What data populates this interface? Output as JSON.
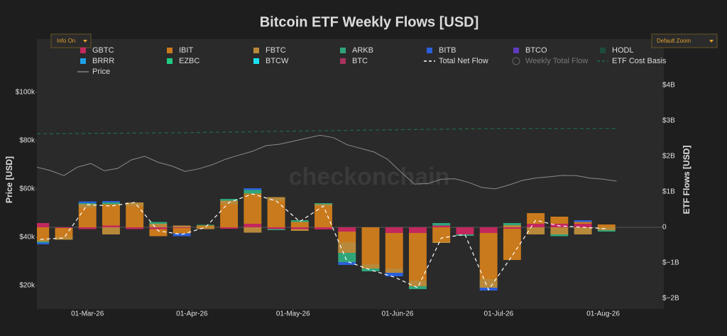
{
  "buttons": {
    "info": "Info On",
    "zoom": "Default Zoom"
  },
  "chart_data": {
    "type": "bar",
    "stacked": true,
    "title": "Bitcoin ETF Weekly Flows [USD]",
    "ylabel": "Price [USD]",
    "y2label": "ETF Flows [USD]",
    "watermark": "checkonchain",
    "x": [
      "2026-02-15",
      "2026-02-22",
      "2026-03-01",
      "2026-03-08",
      "2026-03-15",
      "2026-03-22",
      "2026-03-29",
      "2026-04-05",
      "2026-04-12",
      "2026-04-19",
      "2026-04-26",
      "2026-05-03",
      "2026-05-10",
      "2026-05-17",
      "2026-05-24",
      "2026-05-31",
      "2026-06-07",
      "2026-06-14",
      "2026-06-21",
      "2026-06-28",
      "2026-07-05",
      "2026-07-12",
      "2026-07-19",
      "2026-07-26",
      "2026-08-02"
    ],
    "xlim": [
      "2026-02-14",
      "2026-08-19"
    ],
    "xticks": [
      {
        "value": "2026-03-01",
        "label": "01-Mar-26"
      },
      {
        "value": "2026-04-01",
        "label": "01-Apr-26"
      },
      {
        "value": "2026-05-01",
        "label": "01-May-26"
      },
      {
        "value": "2026-06-01",
        "label": "01-Jun-26"
      },
      {
        "value": "2026-07-01",
        "label": "01-Jul-26"
      },
      {
        "value": "2026-08-01",
        "label": "01-Aug-26"
      }
    ],
    "ylim": [
      10300,
      122000
    ],
    "yticks": [
      {
        "value": 20000,
        "label": "$20k"
      },
      {
        "value": 40000,
        "label": "$40k"
      },
      {
        "value": 60000,
        "label": "$60k"
      },
      {
        "value": 80000,
        "label": "$80k"
      },
      {
        "value": 100000,
        "label": "$100k"
      }
    ],
    "y2lim": [
      -2300000000.0,
      5300000000.0
    ],
    "y2ticks": [
      {
        "value": -2000000000.0,
        "label": "$−2B"
      },
      {
        "value": -1000000000.0,
        "label": "$−1B"
      },
      0,
      {
        "value": 1000000000.0,
        "label": "$1B"
      },
      {
        "value": 2000000000.0,
        "label": "$2B"
      },
      {
        "value": 3000000000.0,
        "label": "$3B"
      },
      {
        "value": 4000000000.0,
        "label": "$4B"
      }
    ],
    "series": [
      {
        "name": "GBTC",
        "color": "#c2285e",
        "axis": "y2",
        "values": [
          120000000.0,
          -20000000.0,
          -50000000.0,
          50000000.0,
          -50000000.0,
          -50000000.0,
          -20000000.0,
          0,
          -40000000.0,
          100000000.0,
          -50000000.0,
          -50000000.0,
          -60000000.0,
          -120000000.0,
          0,
          -160000000.0,
          -160000000.0,
          50000000.0,
          -200000000.0,
          -160000000.0,
          -40000000.0,
          100000000.0,
          100000000.0,
          100000000.0,
          0
        ]
      },
      {
        "name": "IBIT",
        "color": "#c97a1c",
        "axis": "y2",
        "values": [
          -350000000.0,
          -250000000.0,
          550000000.0,
          600000000.0,
          600000000.0,
          -200000000.0,
          -150000000.0,
          50000000.0,
          650000000.0,
          850000000.0,
          750000000.0,
          150000000.0,
          600000000.0,
          -300000000.0,
          -1040000000.0,
          -1000000000.0,
          -1340000000.0,
          -400000000.0,
          0,
          -1300000000.0,
          -880000000.0,
          300000000.0,
          200000000.0,
          50000000.0,
          80000000.0
        ]
      },
      {
        "name": "FBTC",
        "color": "#b8893a",
        "axis": "y2",
        "values": [
          -50000000.0,
          -80000000.0,
          100000000.0,
          -200000000.0,
          100000000.0,
          100000000.0,
          50000000.0,
          -50000000.0,
          100000000.0,
          -150000000.0,
          100000000.0,
          -50000000.0,
          50000000.0,
          -300000000.0,
          -120000000.0,
          -120000000.0,
          -160000000.0,
          -40000000.0,
          0,
          -240000000.0,
          60000000.0,
          -200000000.0,
          -200000000.0,
          -200000000.0,
          -80000000.0
        ]
      },
      {
        "name": "ARKB",
        "color": "#2fa57a",
        "axis": "y2",
        "values": [
          -30000000.0,
          0,
          30000000.0,
          50000000.0,
          0,
          50000000.0,
          0,
          20000000.0,
          50000000.0,
          100000000.0,
          -30000000.0,
          50000000.0,
          30000000.0,
          -260000000.0,
          -80000000.0,
          0,
          -80000000.0,
          70000000.0,
          -40000000.0,
          0,
          60000000.0,
          0,
          -50000000.0,
          0,
          -40000000.0
        ]
      },
      {
        "name": "BITB",
        "color": "#2b5fd9",
        "axis": "y2",
        "values": [
          -50000000.0,
          0,
          50000000.0,
          40000000.0,
          0,
          0,
          -80000000.0,
          0,
          0,
          50000000.0,
          0,
          0,
          0,
          -80000000.0,
          0,
          -100000000.0,
          0,
          0,
          0,
          -80000000.0,
          0,
          0,
          0,
          50000000.0,
          0
        ]
      },
      {
        "name": "BTCO",
        "color": "#5e3bbf",
        "axis": "y2",
        "values": [
          0,
          0,
          0,
          0,
          0,
          0,
          0,
          0,
          0,
          0,
          0,
          0,
          0,
          0,
          0,
          0,
          0,
          0,
          0,
          0,
          0,
          0,
          0,
          0,
          0
        ]
      },
      {
        "name": "HODL",
        "color": "#1d4d3a",
        "axis": "y2",
        "values": [
          0,
          0,
          0,
          0,
          0,
          0,
          0,
          0,
          0,
          0,
          0,
          0,
          0,
          0,
          0,
          0,
          0,
          0,
          0,
          0,
          0,
          0,
          0,
          0,
          0
        ]
      },
      {
        "name": "BRRR",
        "color": "#1ea0e6",
        "axis": "y2",
        "values": [
          0,
          0,
          0,
          0,
          0,
          0,
          0,
          0,
          0,
          0,
          0,
          0,
          0,
          0,
          0,
          0,
          0,
          0,
          0,
          0,
          0,
          0,
          0,
          0,
          0
        ]
      },
      {
        "name": "EZBC",
        "color": "#1fcc80",
        "axis": "y2",
        "values": [
          0,
          0,
          0,
          0,
          0,
          0,
          0,
          0,
          0,
          0,
          0,
          0,
          0,
          0,
          0,
          0,
          0,
          0,
          0,
          0,
          0,
          0,
          0,
          0,
          0
        ]
      },
      {
        "name": "BTCW",
        "color": "#19e0f0",
        "axis": "y2",
        "values": [
          0,
          0,
          0,
          0,
          0,
          0,
          0,
          0,
          0,
          0,
          0,
          0,
          0,
          0,
          0,
          0,
          0,
          0,
          0,
          0,
          0,
          0,
          0,
          0,
          0
        ]
      },
      {
        "name": "BTC",
        "color": "#a8325e",
        "axis": "y2",
        "values": [
          0,
          0,
          0,
          0,
          0,
          0,
          0,
          0,
          0,
          0,
          0,
          0,
          0,
          0,
          0,
          0,
          0,
          0,
          0,
          0,
          0,
          0,
          0,
          0,
          0
        ]
      }
    ],
    "lines": [
      {
        "name": "Total Net Flow",
        "color": "#ffffff",
        "dash": true,
        "axis": "y2",
        "values": [
          -340000000.0,
          -300000000.0,
          640000000.0,
          600000000.0,
          700000000.0,
          -100000000.0,
          -200000000.0,
          0,
          700000000.0,
          940000000.0,
          740000000.0,
          160000000.0,
          600000000.0,
          -960000000.0,
          -1200000000.0,
          -1400000000.0,
          -1700000000.0,
          -300000000.0,
          -200000000.0,
          -1760000000.0,
          -800000000.0,
          200000000.0,
          40000000.0,
          0,
          -40000000.0
        ]
      },
      {
        "name": "Weekly Total Flow",
        "color": "#666666",
        "marker": "circle",
        "hidden": true
      },
      {
        "name": "ETF Cost Basis",
        "color": "#1f6b45",
        "dash": true,
        "axis": "y",
        "x": [
          "2026-02-14",
          "2026-04-01",
          "2026-05-15",
          "2026-07-01",
          "2026-08-05"
        ],
        "values": [
          82800,
          83300,
          84200,
          85000,
          85000
        ]
      },
      {
        "name": "Price",
        "color": "#8a8a8a",
        "axis": "y",
        "x": [
          "2026-02-14",
          "2026-02-18",
          "2026-02-22",
          "2026-02-26",
          "2026-03-02",
          "2026-03-06",
          "2026-03-10",
          "2026-03-14",
          "2026-03-18",
          "2026-03-22",
          "2026-03-26",
          "2026-03-30",
          "2026-04-03",
          "2026-04-07",
          "2026-04-11",
          "2026-04-15",
          "2026-04-19",
          "2026-04-23",
          "2026-04-27",
          "2026-05-01",
          "2026-05-05",
          "2026-05-09",
          "2026-05-13",
          "2026-05-17",
          "2026-05-21",
          "2026-05-25",
          "2026-05-29",
          "2026-06-02",
          "2026-06-06",
          "2026-06-10",
          "2026-06-14",
          "2026-06-18",
          "2026-06-22",
          "2026-06-26",
          "2026-06-30",
          "2026-07-04",
          "2026-07-08",
          "2026-07-12",
          "2026-07-16",
          "2026-07-20",
          "2026-07-24",
          "2026-07-28",
          "2026-08-01",
          "2026-08-05"
        ],
        "values": [
          69000,
          67600,
          65500,
          69000,
          70500,
          67500,
          68500,
          72000,
          73500,
          71000,
          69500,
          67200,
          68300,
          70000,
          72300,
          74000,
          75600,
          77900,
          78500,
          79700,
          81000,
          82200,
          81200,
          78300,
          76800,
          75300,
          72300,
          67000,
          62000,
          62200,
          64000,
          64200,
          62700,
          60600,
          60000,
          61600,
          63500,
          64500,
          65000,
          65600,
          65500,
          64500,
          64000,
          63200
        ]
      }
    ]
  }
}
